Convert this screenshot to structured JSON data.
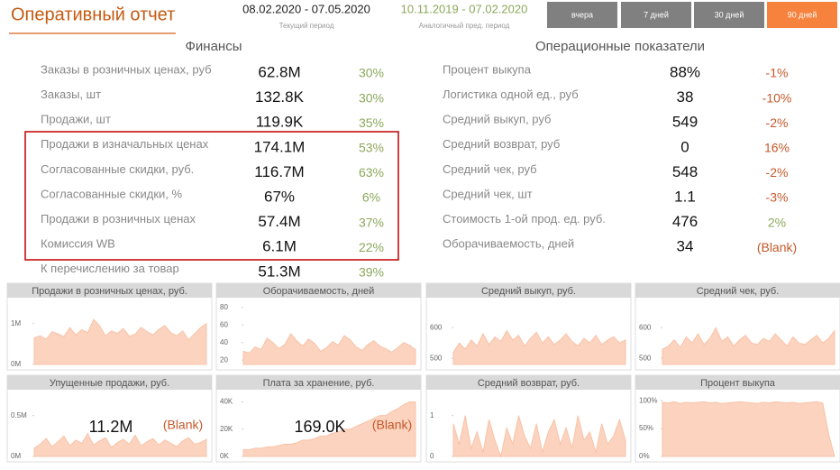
{
  "header": {
    "title": "Оперативный отчет",
    "period": "08.02.2020 - 07.05.2020",
    "period_label": "Текущий период",
    "prev_period": "10.11.2019 - 07.02.2020",
    "prev_label": "Аналогичный пред. период",
    "buttons": [
      "вчера",
      "7 дней",
      "30 дней",
      "90 дней"
    ]
  },
  "finance": {
    "title": "Финансы",
    "rows": [
      {
        "label": "Заказы в розничных ценах, руб",
        "value": "62.8M",
        "change": "30%",
        "color": "#8aa85a"
      },
      {
        "label": "Заказы, шт",
        "value": "132.8K",
        "change": "30%",
        "color": "#8aa85a"
      },
      {
        "label": "Продажи, шт",
        "value": "119.9K",
        "change": "35%",
        "color": "#8aa85a"
      },
      {
        "label": "Продажи в изначальных ценах",
        "value": "174.1M",
        "change": "53%",
        "color": "#8aa85a"
      },
      {
        "label": "Согласованные скидки, руб.",
        "value": "116.7M",
        "change": "63%",
        "color": "#8aa85a"
      },
      {
        "label": "Согласованные скидки, %",
        "value": "67%",
        "change": "6%",
        "color": "#8aa85a"
      },
      {
        "label": "Продажи в розничных ценах",
        "value": "57.4M",
        "change": "37%",
        "color": "#8aa85a"
      },
      {
        "label": "Комиссия WB",
        "value": "6.1M",
        "change": "22%",
        "color": "#8aa85a"
      },
      {
        "label": "К перечислению за товар",
        "value": "51.3M",
        "change": "39%",
        "color": "#8aa85a"
      }
    ]
  },
  "operations": {
    "title": "Операционные показатели",
    "rows": [
      {
        "label": "Процент выкупа",
        "value": "88%",
        "change": "-1%",
        "color": "#c5582a"
      },
      {
        "label": "Логистика одной ед., руб",
        "value": "38",
        "change": "-10%",
        "color": "#c5582a"
      },
      {
        "label": "Средний выкуп, руб",
        "value": "549",
        "change": "-2%",
        "color": "#c5582a"
      },
      {
        "label": "Средний возврат, руб",
        "value": "0",
        "change": "16%",
        "color": "#c5582a"
      },
      {
        "label": "Средний чек, руб",
        "value": "548",
        "change": "-2%",
        "color": "#c5582a"
      },
      {
        "label": "Средний чек, шт",
        "value": "1.1",
        "change": "-3%",
        "color": "#c5582a"
      },
      {
        "label": "Стоимость 1-ой прод. ед. руб.",
        "value": "476",
        "change": "2%",
        "color": "#8aa85a"
      },
      {
        "label": "Оборачиваемость, дней",
        "value": "34",
        "change": "(Blank)",
        "color": "#c5582a"
      }
    ]
  },
  "chart_data": [
    {
      "type": "area",
      "title": "Продажи в розничных ценах, руб.",
      "color": "#fbd3bf",
      "ylim": [
        0,
        1500000
      ],
      "yticks": [
        {
          "value": 0,
          "label": "0M"
        },
        {
          "value": 1000000,
          "label": "1M"
        }
      ],
      "values": [
        650000,
        700000,
        620000,
        800000,
        750000,
        680000,
        900000,
        720000,
        850000,
        780000,
        1100000,
        950000,
        700000,
        820000,
        760000,
        880000,
        690000,
        740000,
        910000,
        800000,
        720000,
        860000,
        950000,
        780000,
        700000,
        820000,
        600000,
        750000,
        900000,
        1000000
      ]
    },
    {
      "type": "area",
      "title": "Оборачиваемость, дней",
      "color": "#fbd3bf",
      "ylim": [
        15,
        85
      ],
      "yticks": [
        20,
        40,
        60,
        80
      ],
      "values": [
        30,
        28,
        35,
        32,
        45,
        40,
        33,
        38,
        50,
        42,
        36,
        44,
        39,
        30,
        34,
        41,
        37,
        48,
        43,
        35,
        31,
        38,
        42,
        36,
        33,
        29,
        34,
        40,
        37,
        32
      ]
    },
    {
      "type": "area",
      "title": "Средний выкуп, руб.",
      "color": "#fbd3bf",
      "ylim": [
        480,
        680
      ],
      "yticks": [
        500,
        600
      ],
      "values": [
        520,
        550,
        530,
        560,
        540,
        580,
        545,
        570,
        555,
        590,
        560,
        575,
        540,
        565,
        585,
        550,
        570,
        545,
        560,
        580,
        555,
        540,
        565,
        550,
        575,
        545,
        560,
        570,
        550,
        560
      ]
    },
    {
      "type": "area",
      "title": "Средний чек, руб.",
      "color": "#fbd3bf",
      "ylim": [
        480,
        680
      ],
      "yticks": [
        500,
        600
      ],
      "values": [
        530,
        540,
        560,
        535,
        570,
        550,
        580,
        545,
        565,
        600,
        555,
        570,
        540,
        560,
        575,
        550,
        545,
        565,
        555,
        580,
        560,
        540,
        570,
        550,
        545,
        560,
        575,
        550,
        565,
        590
      ]
    },
    {
      "type": "area",
      "title": "Упущенные продажи, руб.",
      "color": "#fbd3bf",
      "ylim": [
        0,
        750000
      ],
      "yticks": [
        {
          "value": 0,
          "label": "0M"
        },
        {
          "value": 500000,
          "label": "0.5M"
        }
      ],
      "annotations": [
        "11.2M",
        "(Blank)"
      ],
      "values": [
        100000,
        150000,
        220000,
        120000,
        180000,
        250000,
        130000,
        200000,
        160000,
        280000,
        140000,
        190000,
        230000,
        110000,
        170000,
        210000,
        150000,
        260000,
        130000,
        180000,
        220000,
        140000,
        200000,
        160000,
        120000,
        190000,
        230000,
        150000,
        170000,
        210000
      ]
    },
    {
      "type": "area",
      "title": "Плата за хранение, руб.",
      "color": "#fbd3bf",
      "ylim": [
        0,
        45000
      ],
      "yticks": [
        {
          "value": 0,
          "label": "0K"
        },
        {
          "value": 20000,
          "label": "20K"
        },
        {
          "value": 40000,
          "label": "40K"
        }
      ],
      "annotations": [
        "169.0K",
        "(Blank)"
      ],
      "values": [
        5000,
        5000,
        6000,
        6000,
        7000,
        7000,
        8000,
        9000,
        9000,
        10000,
        12000,
        12000,
        13000,
        15000,
        15000,
        17000,
        18000,
        20000,
        20000,
        22000,
        24000,
        26000,
        28000,
        30000,
        30000,
        33000,
        35000,
        38000,
        40000,
        40000
      ]
    },
    {
      "type": "area",
      "title": "Средний возврат, руб.",
      "color": "#fbd3bf",
      "ylim": [
        0,
        1.5
      ],
      "yticks": [
        0,
        1
      ],
      "values": [
        0.8,
        0.3,
        1,
        0.2,
        0.6,
        0.1,
        0.9,
        0.4,
        0,
        0.7,
        0.3,
        1,
        0.5,
        0.2,
        0.8,
        0.1,
        0.6,
        0.9,
        0.3,
        0.7,
        0.2,
        1,
        0.4,
        0.6,
        0.1,
        0.8,
        0.3,
        0.5,
        0.9,
        0.4
      ]
    },
    {
      "type": "area",
      "title": "Процент выкупа",
      "color": "#fbd3bf",
      "ylim": [
        0,
        110
      ],
      "yticks": [
        {
          "value": 0,
          "label": "0%"
        },
        {
          "value": 50,
          "label": "50%"
        },
        {
          "value": 100,
          "label": "100%"
        }
      ],
      "values": [
        97,
        96,
        98,
        95,
        97,
        96,
        97,
        98,
        96,
        97,
        95,
        96,
        97,
        98,
        97,
        96,
        95,
        97,
        96,
        98,
        97,
        96,
        97,
        95,
        96,
        97,
        98,
        96,
        40,
        0
      ]
    }
  ]
}
